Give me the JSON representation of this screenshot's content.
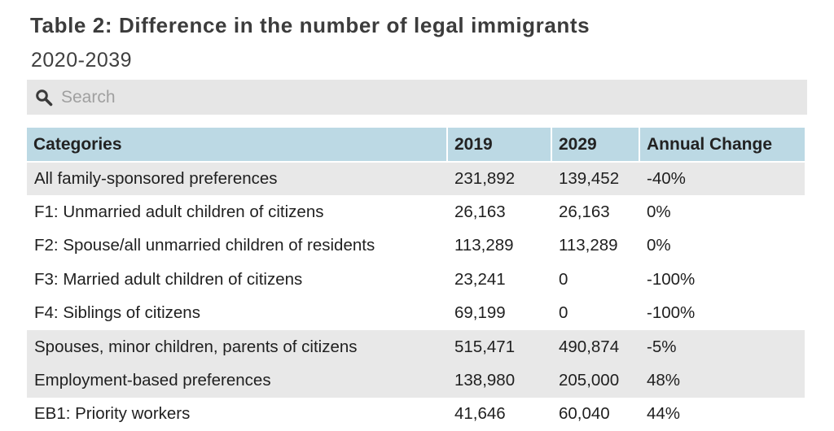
{
  "title": "Table 2: Difference in the number of legal immigrants",
  "subtitle": "2020-2039",
  "search": {
    "placeholder": "Search",
    "icon": "search-icon"
  },
  "colors": {
    "header_bg": "#bcd9e4",
    "shaded_row": "#e8e8e8",
    "search_bg": "#e6e6e6"
  },
  "chart_data": {
    "type": "table",
    "title": "Table 2: Difference in the number of legal immigrants",
    "subtitle": "2020-2039",
    "columns": [
      "Categories",
      "2019",
      "2029",
      "Annual Change"
    ],
    "rows": [
      {
        "category": "All family-sponsored preferences",
        "y2019": "231,892",
        "y2029": "139,452",
        "change": "-40%",
        "shaded": true
      },
      {
        "category": "F1: Unmarried adult children of citizens",
        "y2019": "26,163",
        "y2029": "26,163",
        "change": "0%",
        "shaded": false
      },
      {
        "category": "F2: Spouse/all unmarried children of residents",
        "y2019": "113,289",
        "y2029": "113,289",
        "change": "0%",
        "shaded": false
      },
      {
        "category": "F3: Married adult children of citizens",
        "y2019": "23,241",
        "y2029": "0",
        "change": "-100%",
        "shaded": false
      },
      {
        "category": "F4: Siblings of citizens",
        "y2019": "69,199",
        "y2029": "0",
        "change": "-100%",
        "shaded": false
      },
      {
        "category": "Spouses, minor children, parents of citizens",
        "y2019": "515,471",
        "y2029": "490,874",
        "change": "-5%",
        "shaded": true
      },
      {
        "category": "Employment-based preferences",
        "y2019": "138,980",
        "y2029": "205,000",
        "change": "48%",
        "shaded": true
      },
      {
        "category": "EB1: Priority workers",
        "y2019": "41,646",
        "y2029": "60,040",
        "change": "44%",
        "shaded": false
      }
    ]
  }
}
